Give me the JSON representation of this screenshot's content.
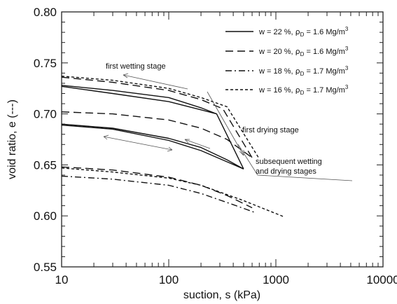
{
  "chart_data": {
    "type": "line",
    "xlabel": "suction, s (kPa)",
    "ylabel": "void ratio, e (---)",
    "xscale": "log",
    "xlim": [
      10,
      10000
    ],
    "ylim": [
      0.55,
      0.8
    ],
    "x_ticks": [
      10,
      100,
      1000,
      10000
    ],
    "x_tick_labels": [
      "10",
      "100",
      "1000",
      "10000"
    ],
    "y_ticks": [
      0.55,
      0.6,
      0.65,
      0.7,
      0.75,
      0.8
    ],
    "y_tick_labels": [
      "0.55",
      "0.60",
      "0.65",
      "0.70",
      "0.75",
      "0.80"
    ],
    "grid": false,
    "legend": {
      "placement": "top-right",
      "entries": [
        {
          "w": "w = 22 %, ",
          "rho": "ρ",
          "sub": "D",
          "rest": " = 1.6 Mg/m",
          "sup": "3",
          "style": "solid"
        },
        {
          "w": "w = 20 %, ",
          "rho": "ρ",
          "sub": "D",
          "rest": " = 1.6 Mg/m",
          "sup": "3",
          "style": "long-dash"
        },
        {
          "w": "w = 18 %, ",
          "rho": "ρ",
          "sub": "D",
          "rest": " = 1.7 Mg/m",
          "sup": "3",
          "style": "dash-dot"
        },
        {
          "w": "w = 16 %, ",
          "rho": "ρ",
          "sub": "D",
          "rest": " = 1.7 Mg/m",
          "sup": "3",
          "style": "short-dash"
        }
      ]
    },
    "annotations": {
      "first_wetting": "first wetting stage",
      "first_drying": "first drying stage",
      "subsequent_1": "subsequent wetting",
      "subsequent_2": "and drying stages"
    },
    "series": [
      {
        "style": "solid",
        "points": [
          [
            10,
            0.728
          ],
          [
            30,
            0.723
          ],
          [
            100,
            0.716
          ],
          [
            200,
            0.706
          ],
          [
            280,
            0.7
          ],
          [
            500,
            0.646
          ]
        ]
      },
      {
        "style": "solid",
        "points": [
          [
            10,
            0.727
          ],
          [
            30,
            0.72
          ],
          [
            100,
            0.712
          ],
          [
            200,
            0.704
          ],
          [
            280,
            0.7
          ]
        ]
      },
      {
        "style": "solid",
        "points": [
          [
            10,
            0.69
          ],
          [
            30,
            0.686
          ],
          [
            100,
            0.676
          ],
          [
            200,
            0.667
          ],
          [
            350,
            0.655
          ],
          [
            500,
            0.646
          ]
        ]
      },
      {
        "style": "solid",
        "points": [
          [
            10,
            0.689
          ],
          [
            30,
            0.685
          ],
          [
            100,
            0.674
          ],
          [
            200,
            0.664
          ],
          [
            350,
            0.653
          ],
          [
            500,
            0.646
          ]
        ]
      },
      {
        "style": "long-dash",
        "points": [
          [
            10,
            0.736
          ],
          [
            30,
            0.731
          ],
          [
            100,
            0.723
          ],
          [
            200,
            0.714
          ],
          [
            320,
            0.705
          ],
          [
            600,
            0.657
          ]
        ]
      },
      {
        "style": "long-dash",
        "points": [
          [
            10,
            0.702
          ],
          [
            30,
            0.7
          ],
          [
            100,
            0.694
          ],
          [
            200,
            0.686
          ],
          [
            350,
            0.675
          ],
          [
            600,
            0.657
          ]
        ]
      },
      {
        "style": "short-dash",
        "points": [
          [
            10,
            0.737
          ],
          [
            30,
            0.733
          ],
          [
            100,
            0.725
          ],
          [
            200,
            0.716
          ],
          [
            350,
            0.707
          ],
          [
            700,
            0.656
          ]
        ]
      },
      {
        "style": "long-dash",
        "points": [
          [
            10,
            0.648
          ],
          [
            30,
            0.645
          ],
          [
            100,
            0.638
          ],
          [
            200,
            0.63
          ],
          [
            350,
            0.62
          ],
          [
            600,
            0.608
          ]
        ]
      },
      {
        "style": "short-dash",
        "points": [
          [
            10,
            0.647
          ],
          [
            30,
            0.643
          ],
          [
            100,
            0.637
          ],
          [
            200,
            0.63
          ],
          [
            500,
            0.615
          ],
          [
            1200,
            0.599
          ]
        ]
      },
      {
        "style": "dash-dot",
        "points": [
          [
            10,
            0.639
          ],
          [
            30,
            0.636
          ],
          [
            100,
            0.63
          ],
          [
            200,
            0.622
          ],
          [
            400,
            0.611
          ],
          [
            650,
            0.603
          ]
        ]
      }
    ]
  }
}
